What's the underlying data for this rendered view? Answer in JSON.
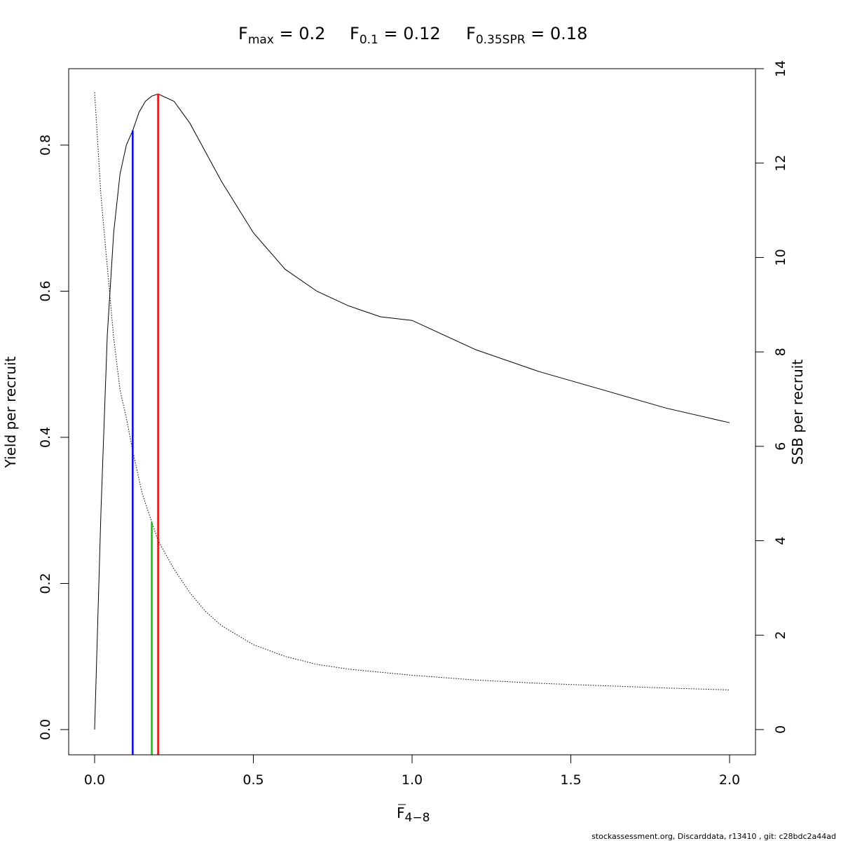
{
  "chart_data": {
    "type": "line",
    "title_parts": [
      {
        "main": "F",
        "sub": "max",
        "rest": " = 0.2"
      },
      {
        "main": "F",
        "sub": "0.1",
        "rest": " = 0.12"
      },
      {
        "main": "F",
        "sub": "0.35SPR",
        "rest": " = 0.18"
      }
    ],
    "xlabel_main": "F",
    "xlabel_sub": "4−8",
    "ylabel_left": "Yield per recruit",
    "ylabel_right": "SSB per recruit",
    "xlim": [
      0,
      2
    ],
    "ylim_left": [
      0,
      0.87
    ],
    "ylim_right": [
      0,
      14
    ],
    "x_ticks": [
      "0.0",
      "0.5",
      "1.0",
      "1.5",
      "2.0"
    ],
    "y_left_ticks": [
      "0.0",
      "0.2",
      "0.4",
      "0.6",
      "0.8"
    ],
    "y_right_ticks": [
      "0",
      "2",
      "4",
      "6",
      "8",
      "10",
      "12",
      "14"
    ],
    "grid": false,
    "series": [
      {
        "axis": "left",
        "style": "solid",
        "x": [
          0,
          0.02,
          0.04,
          0.06,
          0.08,
          0.1,
          0.12,
          0.14,
          0.16,
          0.18,
          0.2,
          0.25,
          0.3,
          0.35,
          0.4,
          0.5,
          0.6,
          0.7,
          0.8,
          0.9,
          1.0,
          1.2,
          1.4,
          1.6,
          1.8,
          2.0
        ],
        "y": [
          0,
          0.3,
          0.54,
          0.68,
          0.76,
          0.8,
          0.82,
          0.845,
          0.86,
          0.867,
          0.87,
          0.86,
          0.83,
          0.79,
          0.75,
          0.68,
          0.63,
          0.6,
          0.58,
          0.565,
          0.56,
          0.52,
          0.49,
          0.465,
          0.44,
          0.42
        ]
      },
      {
        "axis": "right",
        "style": "dotted",
        "x": [
          0,
          0.02,
          0.04,
          0.06,
          0.08,
          0.1,
          0.12,
          0.15,
          0.18,
          0.2,
          0.25,
          0.3,
          0.35,
          0.4,
          0.5,
          0.6,
          0.7,
          0.8,
          1.0,
          1.2,
          1.4,
          1.6,
          1.8,
          2.0
        ],
        "y": [
          13.5,
          11.3,
          9.8,
          8.3,
          7.2,
          6.6,
          5.9,
          5.0,
          4.4,
          4.0,
          3.4,
          2.9,
          2.5,
          2.2,
          1.8,
          1.55,
          1.38,
          1.28,
          1.15,
          1.05,
          0.98,
          0.93,
          0.88,
          0.84
        ]
      }
    ],
    "reference_lines": [
      {
        "x": 0.12,
        "y_top_left": 0.82,
        "color": "#0000ff"
      },
      {
        "x": 0.18,
        "y_top_right": 4.4,
        "color": "#00cc00"
      },
      {
        "x": 0.2,
        "y_top_left": 0.87,
        "color": "#ff0000"
      }
    ]
  },
  "footer": "stockassessment.org, Discarddata, r13410 , git: c28bdc2a44ad"
}
